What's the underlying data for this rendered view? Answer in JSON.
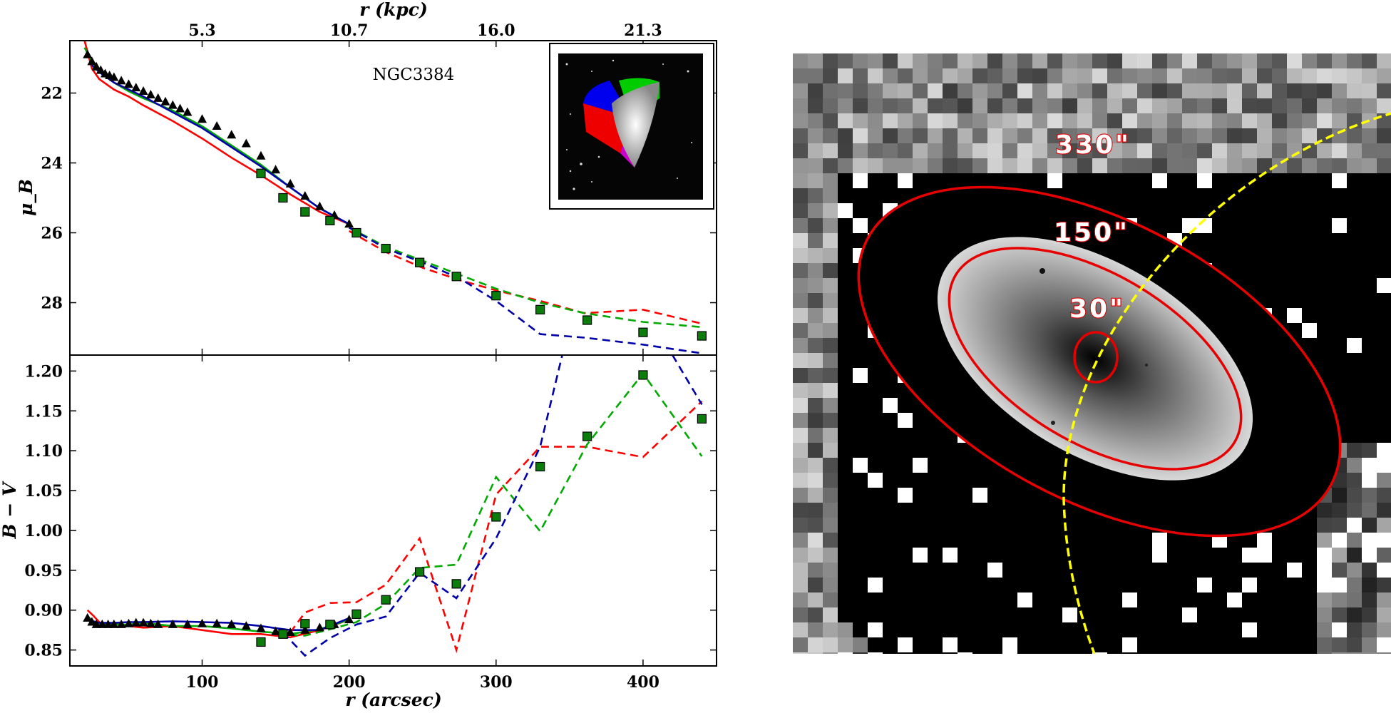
{
  "chart_data": [
    {
      "panel": "top",
      "type": "line",
      "label": "NGC3384",
      "ylabel": "μ_B",
      "xlim": [
        10,
        450
      ],
      "ylim": [
        29.5,
        20.5
      ],
      "y_inverted": true,
      "yticks": [
        22,
        24,
        26,
        28
      ],
      "top_axis": {
        "label": "r (kpc)",
        "ticks": [
          {
            "label": "5.3",
            "r": 100
          },
          {
            "label": "10.7",
            "r": 200
          },
          {
            "label": "16.0",
            "r": 300
          },
          {
            "label": "21.3",
            "r": 400
          }
        ]
      },
      "triangles": {
        "x": [
          22,
          25,
          28,
          31,
          34,
          37,
          40,
          45,
          50,
          55,
          60,
          65,
          70,
          75,
          80,
          85,
          90,
          100,
          110,
          120,
          130,
          140,
          150,
          160,
          170,
          180,
          190,
          200
        ],
        "y": [
          20.9,
          21.1,
          21.25,
          21.35,
          21.45,
          21.5,
          21.55,
          21.65,
          21.75,
          21.85,
          21.95,
          22.05,
          22.15,
          22.25,
          22.35,
          22.45,
          22.55,
          22.75,
          22.95,
          23.2,
          23.45,
          23.8,
          24.2,
          24.6,
          24.95,
          25.25,
          25.5,
          25.75
        ]
      },
      "squares": {
        "x": [
          140,
          155,
          170,
          187,
          205,
          225,
          248,
          273,
          300,
          330,
          362,
          400,
          440
        ],
        "y": [
          24.3,
          25.0,
          25.4,
          25.65,
          26.0,
          26.45,
          26.85,
          27.25,
          27.8,
          28.2,
          28.5,
          28.85,
          28.95
        ]
      },
      "series": [
        {
          "color": "#ff0000",
          "style": "solid",
          "x": [
            20,
            25,
            30,
            40,
            50,
            60,
            80,
            100,
            120,
            140,
            160,
            180,
            200
          ],
          "y": [
            20.5,
            21.3,
            21.6,
            21.9,
            22.1,
            22.35,
            22.8,
            23.3,
            23.85,
            24.35,
            24.9,
            25.4,
            25.75
          ]
        },
        {
          "color": "#00aa00",
          "style": "solid",
          "x": [
            20,
            25,
            30,
            40,
            50,
            60,
            80,
            100,
            120,
            140,
            160,
            180,
            200
          ],
          "y": [
            20.7,
            21.1,
            21.35,
            21.7,
            21.95,
            22.15,
            22.5,
            22.95,
            23.5,
            24.05,
            24.7,
            25.3,
            25.75
          ]
        },
        {
          "color": "#0000aa",
          "style": "solid",
          "x": [
            25,
            30,
            40,
            50,
            60,
            80,
            100,
            120,
            140,
            160,
            180,
            200
          ],
          "y": [
            21.2,
            21.4,
            21.7,
            21.9,
            22.1,
            22.55,
            23.0,
            23.55,
            24.1,
            24.7,
            25.3,
            25.75
          ]
        },
        {
          "color": "#ff0000",
          "style": "dashed",
          "x": [
            200,
            225,
            250,
            275,
            300,
            330,
            360,
            400,
            440
          ],
          "y": [
            25.95,
            26.55,
            27.0,
            27.35,
            27.65,
            27.95,
            28.3,
            28.2,
            28.6
          ]
        },
        {
          "color": "#00aa00",
          "style": "dashed",
          "x": [
            200,
            225,
            250,
            275,
            300,
            330,
            360,
            400,
            440
          ],
          "y": [
            25.85,
            26.4,
            26.8,
            27.2,
            27.6,
            28.0,
            28.3,
            28.55,
            28.7
          ]
        },
        {
          "color": "#0000aa",
          "style": "dashed",
          "x": [
            200,
            225,
            250,
            275,
            300,
            330,
            360,
            400,
            440
          ],
          "y": [
            25.85,
            26.45,
            26.85,
            27.3,
            27.95,
            28.9,
            29.0,
            29.2,
            29.45
          ]
        }
      ]
    },
    {
      "panel": "bottom",
      "type": "line",
      "xlabel": "r (arcsec)",
      "ylabel": "B − V",
      "xlim": [
        10,
        450
      ],
      "ylim": [
        0.83,
        1.22
      ],
      "xticks": [
        100,
        200,
        300,
        400
      ],
      "yticks": [
        "0.85",
        "0.90",
        "0.95",
        "1.00",
        "1.05",
        "1.10",
        "1.15",
        "1.20"
      ],
      "triangles": {
        "x": [
          22,
          25,
          28,
          32,
          36,
          40,
          45,
          50,
          55,
          60,
          65,
          70,
          80,
          90,
          100,
          110,
          120,
          130,
          140,
          150,
          160,
          170,
          180,
          190,
          200
        ],
        "y": [
          0.89,
          0.885,
          0.882,
          0.882,
          0.882,
          0.882,
          0.882,
          0.883,
          0.884,
          0.884,
          0.883,
          0.882,
          0.882,
          0.882,
          0.883,
          0.883,
          0.882,
          0.88,
          0.877,
          0.873,
          0.872,
          0.875,
          0.878,
          0.882,
          0.888
        ]
      },
      "squares": {
        "x": [
          140,
          155,
          170,
          187,
          205,
          225,
          248,
          273,
          300,
          330,
          362,
          400,
          440
        ],
        "y": [
          0.86,
          0.87,
          0.883,
          0.882,
          0.895,
          0.913,
          0.948,
          0.933,
          1.017,
          1.08,
          1.118,
          1.195,
          1.14
        ]
      },
      "series": [
        {
          "color": "#ff0000",
          "style": "solid",
          "x": [
            22,
            26,
            30,
            35,
            40,
            50,
            60,
            80,
            100,
            120,
            140,
            160,
            180,
            200
          ],
          "y": [
            0.9,
            0.893,
            0.885,
            0.88,
            0.883,
            0.88,
            0.878,
            0.88,
            0.875,
            0.87,
            0.87,
            0.866,
            0.875,
            0.888
          ]
        },
        {
          "color": "#00aa00",
          "style": "solid",
          "x": [
            22,
            26,
            30,
            40,
            50,
            60,
            80,
            100,
            120,
            140,
            160,
            180,
            200
          ],
          "y": [
            0.893,
            0.885,
            0.882,
            0.882,
            0.882,
            0.884,
            0.88,
            0.88,
            0.877,
            0.873,
            0.87,
            0.876,
            0.888
          ]
        },
        {
          "color": "#0000aa",
          "style": "solid",
          "x": [
            22,
            30,
            40,
            50,
            60,
            80,
            100,
            120,
            140,
            160,
            180,
            200
          ],
          "y": [
            0.888,
            0.884,
            0.884,
            0.885,
            0.885,
            0.886,
            0.885,
            0.884,
            0.88,
            0.875,
            0.875,
            0.89
          ]
        },
        {
          "color": "#ff0000",
          "style": "dashed",
          "x": [
            160,
            170,
            187,
            205,
            225,
            248,
            273,
            300,
            330,
            362,
            400,
            440
          ],
          "y": [
            0.872,
            0.897,
            0.909,
            0.91,
            0.932,
            0.99,
            0.85,
            1.045,
            1.105,
            1.105,
            1.092,
            1.162
          ]
        },
        {
          "color": "#00aa00",
          "style": "dashed",
          "x": [
            160,
            170,
            187,
            205,
            225,
            248,
            273,
            300,
            330,
            362,
            400,
            440
          ],
          "y": [
            0.869,
            0.868,
            0.876,
            0.885,
            0.908,
            0.953,
            0.957,
            1.067,
            0.999,
            1.108,
            1.197,
            1.093
          ]
        },
        {
          "color": "#0000aa",
          "style": "dashed",
          "x": [
            155,
            170,
            187,
            205,
            225,
            248,
            273,
            300,
            330,
            345
          ],
          "y": [
            0.872,
            0.843,
            0.865,
            0.882,
            0.892,
            0.947,
            0.915,
            0.99,
            1.105,
            1.22
          ]
        },
        {
          "color": "#0000aa",
          "style": "dashed",
          "x": [
            420,
            440
          ],
          "y": [
            1.22,
            1.158
          ]
        }
      ]
    }
  ],
  "image_panel": {
    "ring_labels": [
      "330\"",
      "150\"",
      "30\""
    ]
  }
}
